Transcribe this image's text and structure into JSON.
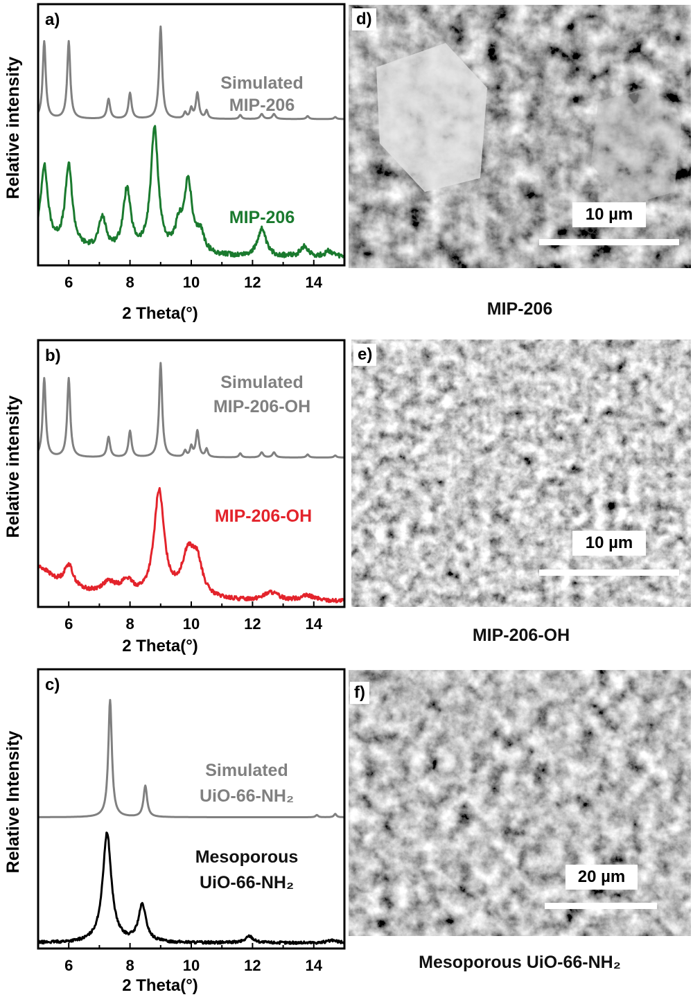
{
  "chart_data": [
    {
      "type": "line",
      "panel_label": "a)",
      "xlabel": "2 Theta(°)",
      "ylabel": "Relative intensity",
      "xlim": [
        5,
        15
      ],
      "xticks": [
        "6",
        "8",
        "10",
        "12",
        "14"
      ],
      "series": [
        {
          "name": "Simulated MIP-206",
          "color": "#808080",
          "baseline": 0.56,
          "scale": 0.38,
          "peaks": [
            [
              5.2,
              0.78,
              0.06
            ],
            [
              6.0,
              0.78,
              0.06
            ],
            [
              7.3,
              0.2,
              0.06
            ],
            [
              8.0,
              0.26,
              0.06
            ],
            [
              9.0,
              0.93,
              0.06
            ],
            [
              9.8,
              0.06,
              0.05
            ],
            [
              10.0,
              0.1,
              0.05
            ],
            [
              10.2,
              0.26,
              0.06
            ],
            [
              10.5,
              0.08,
              0.05
            ],
            [
              11.6,
              0.04,
              0.05
            ],
            [
              12.3,
              0.05,
              0.06
            ],
            [
              12.7,
              0.05,
              0.06
            ],
            [
              13.8,
              0.03,
              0.05
            ],
            [
              14.7,
              0.02,
              0.05
            ]
          ],
          "noise": 0
        },
        {
          "name": "MIP-206",
          "color": "#1a7a2e",
          "baseline": 0.03,
          "scale": 0.38,
          "peaks": [
            [
              5.2,
              0.78,
              0.14
            ],
            [
              6.0,
              0.82,
              0.14
            ],
            [
              7.1,
              0.32,
              0.15
            ],
            [
              7.9,
              0.62,
              0.15
            ],
            [
              8.8,
              1.25,
              0.15
            ],
            [
              9.6,
              0.25,
              0.15
            ],
            [
              9.9,
              0.7,
              0.15
            ],
            [
              10.3,
              0.2,
              0.15
            ],
            [
              12.3,
              0.28,
              0.16
            ],
            [
              13.7,
              0.1,
              0.16
            ],
            [
              14.5,
              0.06,
              0.15
            ]
          ],
          "decay": [
            0.14,
            2.0
          ],
          "noise": 0.025
        }
      ],
      "series_labels": [
        {
          "lines": [
            "Simulated",
            "MIP-206"
          ],
          "color": "#808080"
        },
        {
          "lines": [
            "MIP-206"
          ],
          "color": "#1a7a2e"
        }
      ]
    },
    {
      "type": "line",
      "panel_label": "b)",
      "xlabel": "2 Theta(°)",
      "ylabel": "Relative intensity",
      "xlim": [
        5,
        15
      ],
      "xticks": [
        "6",
        "8",
        "10",
        "12",
        "14"
      ],
      "series": [
        {
          "name": "Simulated MIP-206-OH",
          "color": "#808080",
          "baseline": 0.56,
          "scale": 0.38,
          "peaks": [
            [
              5.2,
              0.78,
              0.06
            ],
            [
              6.0,
              0.78,
              0.06
            ],
            [
              7.3,
              0.2,
              0.06
            ],
            [
              8.0,
              0.26,
              0.06
            ],
            [
              9.0,
              0.93,
              0.06
            ],
            [
              9.8,
              0.06,
              0.05
            ],
            [
              10.0,
              0.1,
              0.05
            ],
            [
              10.2,
              0.26,
              0.06
            ],
            [
              10.5,
              0.08,
              0.05
            ],
            [
              11.6,
              0.04,
              0.05
            ],
            [
              12.3,
              0.05,
              0.06
            ],
            [
              12.7,
              0.05,
              0.06
            ],
            [
              13.8,
              0.03,
              0.05
            ],
            [
              14.7,
              0.02,
              0.05
            ]
          ],
          "noise": 0
        },
        {
          "name": "MIP-206-OH",
          "color": "#e3232b",
          "baseline": 0.02,
          "scale": 0.38,
          "peaks": [
            [
              5.2,
              0.05,
              0.3
            ],
            [
              6.0,
              0.22,
              0.18
            ],
            [
              7.3,
              0.12,
              0.3
            ],
            [
              7.9,
              0.14,
              0.25
            ],
            [
              8.95,
              1.05,
              0.2
            ],
            [
              9.9,
              0.42,
              0.25
            ],
            [
              10.2,
              0.3,
              0.2
            ],
            [
              12.6,
              0.08,
              0.3
            ],
            [
              13.8,
              0.05,
              0.3
            ]
          ],
          "decay": [
            0.3,
            1.2
          ],
          "noise": 0.02
        }
      ],
      "series_labels": [
        {
          "lines": [
            "Simulated",
            "MIP-206-OH"
          ],
          "color": "#808080"
        },
        {
          "lines": [
            "MIP-206-OH"
          ],
          "color": "#e3232b"
        }
      ]
    },
    {
      "type": "line",
      "panel_label": "c)",
      "xlabel": "2 Theta(°)",
      "ylabel": "Relative Intensity",
      "xlim": [
        5,
        15
      ],
      "xticks": [
        "6",
        "8",
        "10",
        "12",
        "14"
      ],
      "series": [
        {
          "name": "Simulated UiO-66-NH2",
          "color": "#808080",
          "baseline": 0.47,
          "scale": 0.4,
          "peaks": [
            [
              7.35,
              1.05,
              0.07
            ],
            [
              8.5,
              0.28,
              0.07
            ],
            [
              14.1,
              0.02,
              0.05
            ],
            [
              14.7,
              0.03,
              0.05
            ]
          ],
          "noise": 0
        },
        {
          "name": "Mesoporous UiO-66-NH2",
          "color": "#000000",
          "baseline": 0.02,
          "scale": 0.4,
          "peaks": [
            [
              7.25,
              0.98,
              0.17
            ],
            [
              8.4,
              0.33,
              0.15
            ],
            [
              11.9,
              0.06,
              0.15
            ],
            [
              14.6,
              0.02,
              0.2
            ]
          ],
          "noise": 0.012
        }
      ],
      "series_labels": [
        {
          "lines": [
            "Simulated",
            "UiO-66-NH₂"
          ],
          "color": "#808080"
        },
        {
          "lines": [
            "Mesoporous",
            "UiO-66-NH₂"
          ],
          "color": "#111111"
        }
      ]
    }
  ],
  "sem_panels": [
    {
      "panel_label": "d)",
      "scale_label": "10 µm",
      "caption": "MIP-206"
    },
    {
      "panel_label": "e)",
      "scale_label": "10 µm",
      "caption": "MIP-206-OH"
    },
    {
      "panel_label": "f)",
      "scale_label": "20 µm",
      "caption": "Mesoporous UiO-66-NH₂"
    }
  ]
}
